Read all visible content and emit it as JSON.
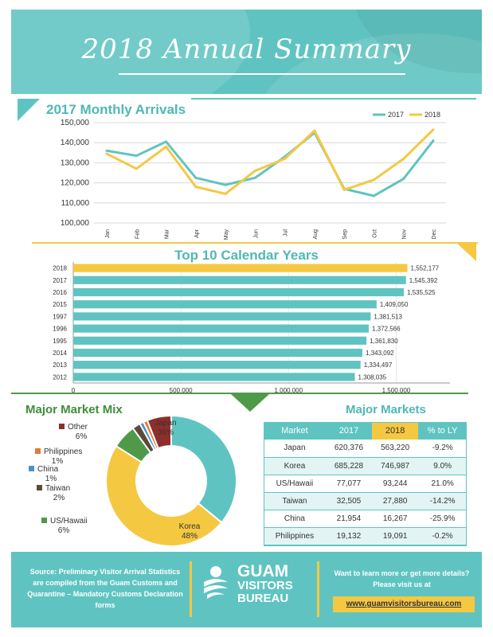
{
  "page": {
    "title": "2018 Annual Summary",
    "colors": {
      "teal": "#5fc4c1",
      "yellow": "#f5c842",
      "green": "#4f9a48",
      "darkred": "#8e2f2b",
      "orange": "#e07a3a",
      "blue": "#4f8fc9",
      "brown": "#5a4a3a"
    }
  },
  "monthly": {
    "title": "2017 Monthly Arrivals",
    "chart_data": {
      "type": "line",
      "categories": [
        "Jan",
        "Feb",
        "Mar",
        "Apr",
        "May",
        "Jun",
        "Jul",
        "Aug",
        "Sep",
        "Oct",
        "Nov",
        "Dec"
      ],
      "series": [
        {
          "name": "2017",
          "color": "#5fc4c1",
          "values": [
            136000,
            133500,
            140500,
            122500,
            119000,
            122500,
            133000,
            145000,
            117000,
            113500,
            122000,
            141000
          ]
        },
        {
          "name": "2018",
          "color": "#f5c842",
          "values": [
            134500,
            127000,
            138000,
            118000,
            114500,
            126000,
            132000,
            146000,
            116500,
            121500,
            132000,
            146500
          ]
        }
      ],
      "ylim": [
        100000,
        150000
      ],
      "yticks": [
        "100,000",
        "110,000",
        "120,000",
        "130,000",
        "140,000",
        "150,000"
      ],
      "legend_position": "top-right",
      "grid": true
    }
  },
  "top10": {
    "title": "Top 10 Calendar Years",
    "chart_data": {
      "type": "bar",
      "orientation": "horizontal",
      "categories": [
        "2018",
        "2017",
        "2016",
        "2015",
        "1997",
        "1996",
        "1995",
        "2014",
        "2013",
        "2012"
      ],
      "values": [
        1552177,
        1545392,
        1535525,
        1409050,
        1381513,
        1372566,
        1361830,
        1343092,
        1334497,
        1308035
      ],
      "value_labels": [
        "1,552,177",
        "1,545,392",
        "1,535,525",
        "1,409,050",
        "1,381,513",
        "1,372,566",
        "1,361,830",
        "1,343,092",
        "1,334,497",
        "1,308,035"
      ],
      "highlight_color": "#f5c842",
      "bar_color": "#5fc4c1",
      "xlim": [
        0,
        1750000
      ],
      "xticks": [
        "0",
        "500,000",
        "1,000,000",
        "1,500,000"
      ],
      "grid": true
    }
  },
  "mix": {
    "title": "Major Market Mix",
    "chart_data": {
      "type": "pie",
      "donut": true,
      "slices": [
        {
          "label": "Japan",
          "pct": "36%",
          "value": 36,
          "color": "#5fc4c1"
        },
        {
          "label": "Korea",
          "pct": "48%",
          "value": 48,
          "color": "#f5c842"
        },
        {
          "label": "US/Hawaii",
          "pct": "6%",
          "value": 6,
          "color": "#4f9a48"
        },
        {
          "label": "Taiwan",
          "pct": "2%",
          "value": 2,
          "color": "#5a4a3a"
        },
        {
          "label": "China",
          "pct": "1%",
          "value": 1,
          "color": "#4f8fc9"
        },
        {
          "label": "Philippines",
          "pct": "1%",
          "value": 1,
          "color": "#e07a3a"
        },
        {
          "label": "Other",
          "pct": "6%",
          "value": 6,
          "color": "#8e2f2b"
        }
      ]
    }
  },
  "markets": {
    "title": "Major Markets",
    "headers": [
      "Market",
      "2017",
      "2018",
      "% to LY"
    ],
    "rows": [
      [
        "Japan",
        "620,376",
        "563,220",
        "-9.2%"
      ],
      [
        "Korea",
        "685,228",
        "746,987",
        "9.0%"
      ],
      [
        "US/Hawaii",
        "77,077",
        "93,244",
        "21.0%"
      ],
      [
        "Taiwan",
        "32,505",
        "27,880",
        "-14.2%"
      ],
      [
        "China",
        "21,954",
        "16,267",
        "-25.9%"
      ],
      [
        "Philippines",
        "19,132",
        "19,091",
        "-0.2%"
      ]
    ]
  },
  "footer": {
    "source": "Source: Preliminary Visitor Arrival Statistics are compiled from the Guam Customs and Quarantine – Mandatory Customs Declaration forms",
    "logo_line1": "GUAM",
    "logo_line2": "VISITORS",
    "logo_line3": "BUREAU",
    "cta": "Want to learn more or get more details? Please visit us at",
    "url": "www.guamvisitorsbureau.com"
  }
}
